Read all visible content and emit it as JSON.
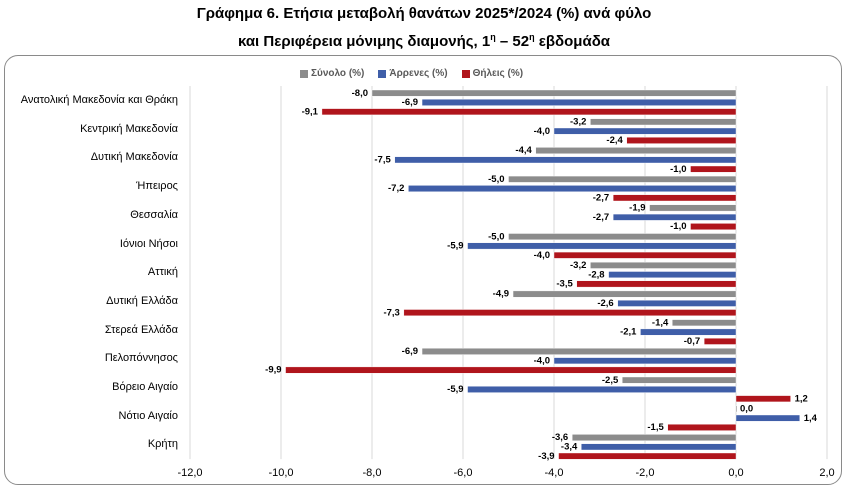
{
  "title": {
    "line1": "Γράφημα 6. Ετήσια μεταβολή θανάτων 2025*/2024 (%) ανά φύλο",
    "line2_prefix": "και Περιφέρεια μόνιμης διαμονής, 1",
    "line2_sup1": "η",
    "line2_mid": " – 52",
    "line2_sup2": "η",
    "line2_suffix": " εβδομάδα"
  },
  "colors": {
    "total": "#8c8c8c",
    "male": "#3f5ea8",
    "female": "#b0151c",
    "gridline": "#d9d9d9"
  },
  "chart_data": {
    "type": "bar",
    "orientation": "horizontal",
    "categories": [
      "Ανατολική Μακεδονία και Θράκη",
      "Κεντρική Μακεδονία",
      "Δυτική Μακεδονία",
      "Ήπειρος",
      "Θεσσαλία",
      "Ιόνιοι Νήσοι",
      "Αττική",
      "Δυτική Ελλάδα",
      "Στερεά Ελλάδα",
      "Πελοπόννησος",
      "Βόρειο Αιγαίο",
      "Νότιο Αιγαίο",
      "Κρήτη"
    ],
    "series": [
      {
        "name": "Σύνολο (%)",
        "key": "total",
        "values": [
          -8.0,
          -3.2,
          -4.4,
          -5.0,
          -1.9,
          -5.0,
          -3.2,
          -4.9,
          -1.4,
          -6.9,
          -2.5,
          0.0,
          -3.6
        ],
        "labels": [
          "-8,0",
          "-3,2",
          "-4,4",
          "-5,0",
          "-1,9",
          "-5,0",
          "-3,2",
          "-4,9",
          "-1,4",
          "-6,9",
          "-2,5",
          "0,0",
          "-3,6"
        ]
      },
      {
        "name": "Άρρενες (%)",
        "key": "male",
        "values": [
          -6.9,
          -4.0,
          -7.5,
          -7.2,
          -2.7,
          -5.9,
          -2.8,
          -2.6,
          -2.1,
          -4.0,
          -5.9,
          1.4,
          -3.4
        ],
        "labels": [
          "-6,9",
          "-4,0",
          "-7,5",
          "-7,2",
          "-2,7",
          "-5,9",
          "-2,8",
          "-2,6",
          "-2,1",
          "-4,0",
          "-5,9",
          "1,4",
          "-3,4"
        ]
      },
      {
        "name": "Θήλεις (%)",
        "key": "female",
        "values": [
          -9.1,
          -2.4,
          -1.0,
          -2.7,
          -1.0,
          -4.0,
          -3.5,
          -7.3,
          -0.7,
          -9.9,
          1.2,
          -1.5,
          -3.9
        ],
        "labels": [
          "-9,1",
          "-2,4",
          "-1,0",
          "-2,7",
          "-1,0",
          "-4,0",
          "-3,5",
          "-7,3",
          "-0,7",
          "-9,9",
          "1,2",
          "-1,5",
          "-3,9"
        ]
      }
    ],
    "xlim": [
      -12.0,
      2.0
    ],
    "xticks": [
      -12,
      -10,
      -8,
      -6,
      -4,
      -2,
      0,
      2
    ],
    "xtick_labels": [
      "-12,0",
      "-10,0",
      "-8,0",
      "-6,0",
      "-4,0",
      "-2,0",
      "0,0",
      "2,0"
    ],
    "grid": "vertical",
    "legend_position": "top"
  }
}
